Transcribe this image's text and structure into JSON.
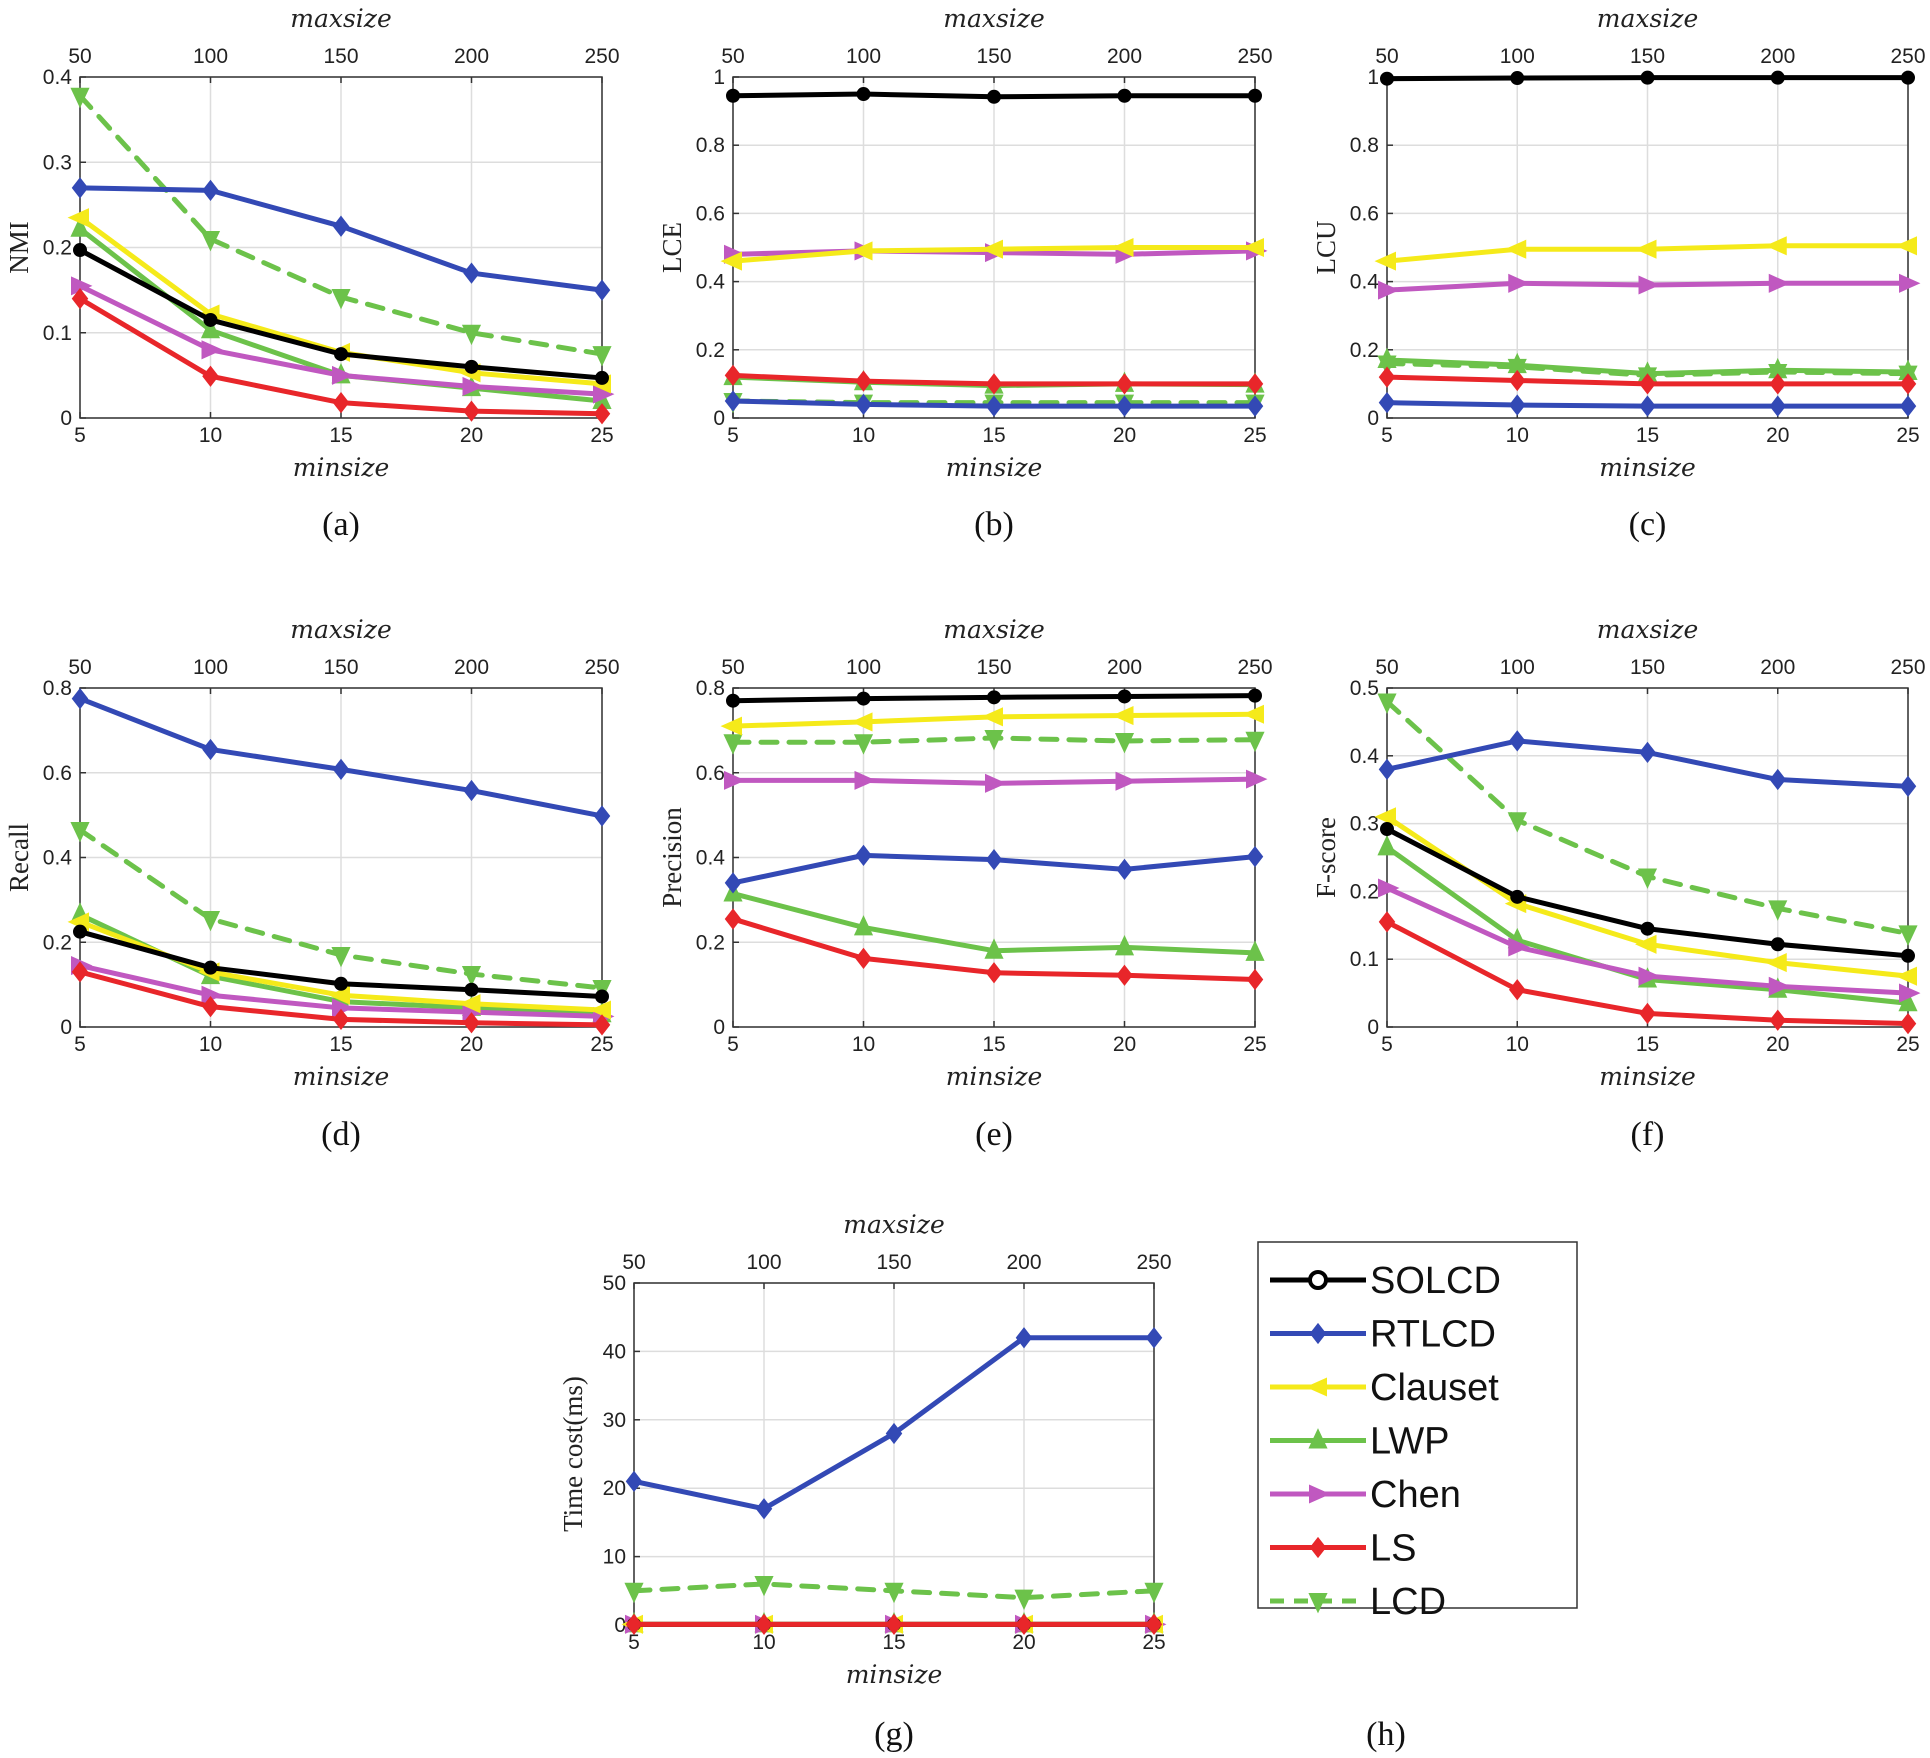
{
  "colors": {
    "SOLCD": "#000000",
    "RTLCD": "#3349b5",
    "Clauset": "#f5ea1a",
    "LWP": "#6cc24a",
    "Chen": "#c058c0",
    "LS": "#e8262a",
    "LCD": "#6cc24a"
  },
  "legend": {
    "entries": [
      "SOLCD",
      "RTLCD",
      "Clauset",
      "LWP",
      "Chen",
      "LS",
      "LCD"
    ],
    "label": "(h)"
  },
  "chart_data": [
    {
      "type": "line",
      "label": "(a)",
      "ylabel": "NMI",
      "xlabel": "minsize",
      "x2label": "maxsize",
      "x": [
        5,
        10,
        15,
        20,
        25
      ],
      "x_ticks": [
        "5",
        "10",
        "15",
        "20",
        "25"
      ],
      "x2_ticks": [
        "50",
        "100",
        "150",
        "200",
        "250"
      ],
      "ylim": [
        0,
        0.4
      ],
      "y_ticks": [
        "0",
        "0.1",
        "0.2",
        "0.3",
        "0.4"
      ],
      "y_tick_values": [
        0,
        0.1,
        0.2,
        0.3,
        0.4
      ],
      "series": [
        {
          "name": "SOLCD",
          "values": [
            0.197,
            0.115,
            0.075,
            0.06,
            0.047
          ]
        },
        {
          "name": "RTLCD",
          "values": [
            0.27,
            0.267,
            0.225,
            0.17,
            0.15
          ]
        },
        {
          "name": "Clauset",
          "values": [
            0.235,
            0.122,
            0.077,
            0.053,
            0.04
          ]
        },
        {
          "name": "LWP",
          "values": [
            0.222,
            0.103,
            0.05,
            0.035,
            0.02
          ]
        },
        {
          "name": "Chen",
          "values": [
            0.155,
            0.08,
            0.05,
            0.037,
            0.028
          ]
        },
        {
          "name": "LS",
          "values": [
            0.14,
            0.049,
            0.018,
            0.008,
            0.005
          ]
        },
        {
          "name": "LCD",
          "values": [
            0.378,
            0.21,
            0.142,
            0.1,
            0.075
          ]
        }
      ]
    },
    {
      "type": "line",
      "label": "(b)",
      "ylabel": "LCE",
      "xlabel": "minsize",
      "x2label": "maxsize",
      "x": [
        5,
        10,
        15,
        20,
        25
      ],
      "x_ticks": [
        "5",
        "10",
        "15",
        "20",
        "25"
      ],
      "x2_ticks": [
        "50",
        "100",
        "150",
        "200",
        "250"
      ],
      "ylim": [
        0,
        1
      ],
      "y_ticks": [
        "0",
        "0.2",
        "0.4",
        "0.6",
        "0.8",
        "1"
      ],
      "y_tick_values": [
        0,
        0.2,
        0.4,
        0.6,
        0.8,
        1
      ],
      "series": [
        {
          "name": "SOLCD",
          "values": [
            0.945,
            0.95,
            0.942,
            0.945,
            0.945
          ]
        },
        {
          "name": "RTLCD",
          "values": [
            0.05,
            0.04,
            0.035,
            0.035,
            0.035
          ]
        },
        {
          "name": "Clauset",
          "values": [
            0.46,
            0.49,
            0.495,
            0.5,
            0.5
          ]
        },
        {
          "name": "LWP",
          "values": [
            0.12,
            0.105,
            0.095,
            0.1,
            0.098
          ]
        },
        {
          "name": "Chen",
          "values": [
            0.48,
            0.49,
            0.485,
            0.48,
            0.49
          ]
        },
        {
          "name": "LS",
          "values": [
            0.125,
            0.108,
            0.1,
            0.1,
            0.1
          ]
        },
        {
          "name": "LCD",
          "values": [
            0.05,
            0.045,
            0.045,
            0.045,
            0.045
          ]
        }
      ]
    },
    {
      "type": "line",
      "label": "(c)",
      "ylabel": "LCU",
      "xlabel": "minsize",
      "x2label": "maxsize",
      "x": [
        5,
        10,
        15,
        20,
        25
      ],
      "x_ticks": [
        "5",
        "10",
        "15",
        "20",
        "25"
      ],
      "x2_ticks": [
        "50",
        "100",
        "150",
        "200",
        "250"
      ],
      "ylim": [
        0,
        1
      ],
      "y_ticks": [
        "0",
        "0.2",
        "0.4",
        "0.6",
        "0.8",
        "1"
      ],
      "y_tick_values": [
        0,
        0.2,
        0.4,
        0.6,
        0.8,
        1
      ],
      "series": [
        {
          "name": "SOLCD",
          "values": [
            0.995,
            0.997,
            0.998,
            0.998,
            0.998
          ]
        },
        {
          "name": "RTLCD",
          "values": [
            0.045,
            0.038,
            0.035,
            0.035,
            0.035
          ]
        },
        {
          "name": "Clauset",
          "values": [
            0.46,
            0.495,
            0.495,
            0.505,
            0.505
          ]
        },
        {
          "name": "LWP",
          "values": [
            0.17,
            0.155,
            0.13,
            0.14,
            0.135
          ]
        },
        {
          "name": "Chen",
          "values": [
            0.375,
            0.395,
            0.39,
            0.395,
            0.395
          ]
        },
        {
          "name": "LS",
          "values": [
            0.12,
            0.11,
            0.1,
            0.1,
            0.1
          ]
        },
        {
          "name": "LCD",
          "values": [
            0.16,
            0.15,
            0.125,
            0.135,
            0.13
          ]
        }
      ]
    },
    {
      "type": "line",
      "label": "(d)",
      "ylabel": "Recall",
      "xlabel": "minsize",
      "x2label": "maxsize",
      "x": [
        5,
        10,
        15,
        20,
        25
      ],
      "x_ticks": [
        "5",
        "10",
        "15",
        "20",
        "25"
      ],
      "x2_ticks": [
        "50",
        "100",
        "150",
        "200",
        "250"
      ],
      "ylim": [
        0,
        0.8
      ],
      "y_ticks": [
        "0",
        "0.2",
        "0.4",
        "0.6",
        "0.8"
      ],
      "y_tick_values": [
        0,
        0.2,
        0.4,
        0.6,
        0.8
      ],
      "series": [
        {
          "name": "SOLCD",
          "values": [
            0.225,
            0.14,
            0.102,
            0.088,
            0.072
          ]
        },
        {
          "name": "RTLCD",
          "values": [
            0.775,
            0.655,
            0.608,
            0.558,
            0.498
          ]
        },
        {
          "name": "Clauset",
          "values": [
            0.248,
            0.13,
            0.075,
            0.055,
            0.04
          ]
        },
        {
          "name": "LWP",
          "values": [
            0.265,
            0.12,
            0.06,
            0.045,
            0.03
          ]
        },
        {
          "name": "Chen",
          "values": [
            0.145,
            0.075,
            0.045,
            0.035,
            0.025
          ]
        },
        {
          "name": "LS",
          "values": [
            0.13,
            0.048,
            0.018,
            0.01,
            0.005
          ]
        },
        {
          "name": "LCD",
          "values": [
            0.465,
            0.255,
            0.17,
            0.125,
            0.092
          ]
        }
      ]
    },
    {
      "type": "line",
      "label": "(e)",
      "ylabel": "Precision",
      "xlabel": "minsize",
      "x2label": "maxsize",
      "x": [
        5,
        10,
        15,
        20,
        25
      ],
      "x_ticks": [
        "5",
        "10",
        "15",
        "20",
        "25"
      ],
      "x2_ticks": [
        "50",
        "100",
        "150",
        "200",
        "250"
      ],
      "ylim": [
        0,
        0.8
      ],
      "y_ticks": [
        "0",
        "0.2",
        "0.4",
        "0.6",
        "0.8"
      ],
      "y_tick_values": [
        0,
        0.2,
        0.4,
        0.6,
        0.8
      ],
      "series": [
        {
          "name": "SOLCD",
          "values": [
            0.77,
            0.775,
            0.778,
            0.78,
            0.782
          ]
        },
        {
          "name": "RTLCD",
          "values": [
            0.34,
            0.405,
            0.395,
            0.372,
            0.402
          ]
        },
        {
          "name": "Clauset",
          "values": [
            0.71,
            0.72,
            0.732,
            0.735,
            0.738
          ]
        },
        {
          "name": "LWP",
          "values": [
            0.315,
            0.235,
            0.18,
            0.188,
            0.175
          ]
        },
        {
          "name": "Chen",
          "values": [
            0.582,
            0.582,
            0.575,
            0.58,
            0.585
          ]
        },
        {
          "name": "LS",
          "values": [
            0.255,
            0.162,
            0.128,
            0.122,
            0.112
          ]
        },
        {
          "name": "LCD",
          "values": [
            0.672,
            0.672,
            0.682,
            0.675,
            0.678
          ]
        }
      ]
    },
    {
      "type": "line",
      "label": "(f)",
      "ylabel": "F-score",
      "xlabel": "minsize",
      "x2label": "maxsize",
      "x": [
        5,
        10,
        15,
        20,
        25
      ],
      "x_ticks": [
        "5",
        "10",
        "15",
        "20",
        "25"
      ],
      "x2_ticks": [
        "50",
        "100",
        "150",
        "200",
        "250"
      ],
      "ylim": [
        0,
        0.5
      ],
      "y_ticks": [
        "0",
        "0.1",
        "0.2",
        "0.3",
        "0.4",
        "0.5"
      ],
      "y_tick_values": [
        0,
        0.1,
        0.2,
        0.3,
        0.4,
        0.5
      ],
      "series": [
        {
          "name": "SOLCD",
          "values": [
            0.292,
            0.192,
            0.145,
            0.122,
            0.105
          ]
        },
        {
          "name": "RTLCD",
          "values": [
            0.38,
            0.422,
            0.405,
            0.365,
            0.355
          ]
        },
        {
          "name": "Clauset",
          "values": [
            0.31,
            0.182,
            0.122,
            0.095,
            0.075
          ]
        },
        {
          "name": "LWP",
          "values": [
            0.265,
            0.128,
            0.07,
            0.055,
            0.035
          ]
        },
        {
          "name": "Chen",
          "values": [
            0.205,
            0.118,
            0.075,
            0.06,
            0.05
          ]
        },
        {
          "name": "LS",
          "values": [
            0.155,
            0.055,
            0.02,
            0.01,
            0.005
          ]
        },
        {
          "name": "LCD",
          "values": [
            0.48,
            0.305,
            0.222,
            0.175,
            0.138
          ]
        }
      ]
    },
    {
      "type": "line",
      "label": "(g)",
      "ylabel": "Time cost(ms)",
      "xlabel": "minsize",
      "x2label": "maxsize",
      "x": [
        5,
        10,
        15,
        20,
        25
      ],
      "x_ticks": [
        "5",
        "10",
        "15",
        "20",
        "25"
      ],
      "x2_ticks": [
        "50",
        "100",
        "150",
        "200",
        "250"
      ],
      "ylim": [
        0,
        50
      ],
      "y_ticks": [
        "0",
        "10",
        "20",
        "30",
        "40",
        "50"
      ],
      "y_tick_values": [
        0,
        10,
        20,
        30,
        40,
        50
      ],
      "series": [
        {
          "name": "SOLCD",
          "values": [
            0.1,
            0.1,
            0.1,
            0.1,
            0.1
          ]
        },
        {
          "name": "RTLCD",
          "values": [
            21,
            17,
            28,
            42,
            42
          ]
        },
        {
          "name": "Clauset",
          "values": [
            0.1,
            0.1,
            0.1,
            0.1,
            0.1
          ]
        },
        {
          "name": "LWP",
          "values": [
            0.1,
            0.1,
            0.1,
            0.1,
            0.1
          ]
        },
        {
          "name": "Chen",
          "values": [
            0.1,
            0.1,
            0.1,
            0.1,
            0.1
          ]
        },
        {
          "name": "LS",
          "values": [
            0.1,
            0.1,
            0.1,
            0.1,
            0.1
          ]
        },
        {
          "name": "LCD",
          "values": [
            5,
            6,
            5,
            4,
            5
          ]
        }
      ]
    }
  ]
}
